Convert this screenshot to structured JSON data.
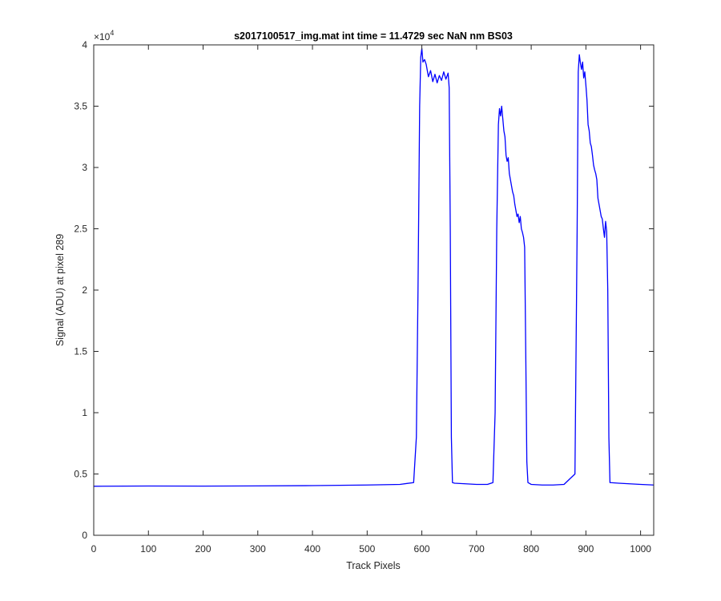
{
  "chart_data": {
    "type": "line",
    "title": "s2017100517_img.mat int time = 11.4729 sec  NaN nm BS03",
    "xlabel": "Track Pixels",
    "ylabel": "Signal (ADU) at pixel 289",
    "xlim": [
      0,
      1024
    ],
    "ylim": [
      0,
      40000
    ],
    "y_exponent_label": "×10",
    "y_exponent_power": "4",
    "xticks": [
      0,
      100,
      200,
      300,
      400,
      500,
      600,
      700,
      800,
      900,
      1000
    ],
    "xtick_labels": [
      "0",
      "100",
      "200",
      "300",
      "400",
      "500",
      "600",
      "700",
      "800",
      "900",
      "1000"
    ],
    "yticks": [
      0,
      5000,
      10000,
      15000,
      20000,
      25000,
      30000,
      35000,
      40000
    ],
    "ytick_labels": [
      "0",
      "0.5",
      "1",
      "1.5",
      "2",
      "2.5",
      "3",
      "3.5",
      "4"
    ],
    "grid": false,
    "legend": false,
    "line_color": "#0000ff",
    "series": [
      {
        "x": [
          0,
          100,
          200,
          300,
          400,
          500,
          560,
          585,
          590,
          593,
          596,
          598,
          600,
          602,
          605,
          608,
          612,
          616,
          620,
          624,
          628,
          632,
          636,
          640,
          644,
          648,
          650,
          652,
          654,
          656,
          660,
          680,
          700,
          720,
          730,
          734,
          737,
          740,
          742,
          744,
          746,
          748,
          750,
          752,
          754,
          756,
          758,
          760,
          762,
          764,
          766,
          768,
          770,
          772,
          774,
          776,
          778,
          780,
          782,
          784,
          786,
          788,
          790,
          792,
          794,
          796,
          798,
          800,
          820,
          840,
          860,
          880,
          884,
          886,
          888,
          890,
          892,
          894,
          896,
          898,
          900,
          902,
          904,
          906,
          908,
          910,
          912,
          914,
          916,
          918,
          920,
          922,
          924,
          926,
          928,
          930,
          932,
          934,
          936,
          938,
          940,
          942,
          944,
          960,
          980,
          1000,
          1024
        ],
        "y": [
          4000,
          4020,
          4010,
          4030,
          4050,
          4100,
          4150,
          4300,
          8000,
          20000,
          35000,
          39000,
          39700,
          38600,
          38800,
          38400,
          37400,
          37900,
          37000,
          37600,
          36900,
          37500,
          37100,
          37800,
          37200,
          37700,
          36500,
          25000,
          8000,
          4300,
          4250,
          4200,
          4150,
          4150,
          4300,
          10000,
          25000,
          33500,
          34800,
          34200,
          35000,
          34000,
          33000,
          32500,
          31000,
          30500,
          30800,
          29500,
          29000,
          28500,
          28000,
          27700,
          27000,
          26500,
          26000,
          26200,
          25500,
          26000,
          25000,
          24700,
          24300,
          23500,
          15000,
          6000,
          4300,
          4250,
          4200,
          4150,
          4100,
          4100,
          4150,
          5000,
          25000,
          37800,
          39200,
          38500,
          38000,
          38600,
          37300,
          37800,
          36700,
          35500,
          33500,
          33000,
          32000,
          31700,
          31000,
          30200,
          29800,
          29500,
          29000,
          27500,
          27000,
          26500,
          26000,
          25800,
          25000,
          24300,
          25600,
          24800,
          20000,
          8000,
          4300,
          4250,
          4200,
          4150,
          4100
        ]
      }
    ]
  }
}
